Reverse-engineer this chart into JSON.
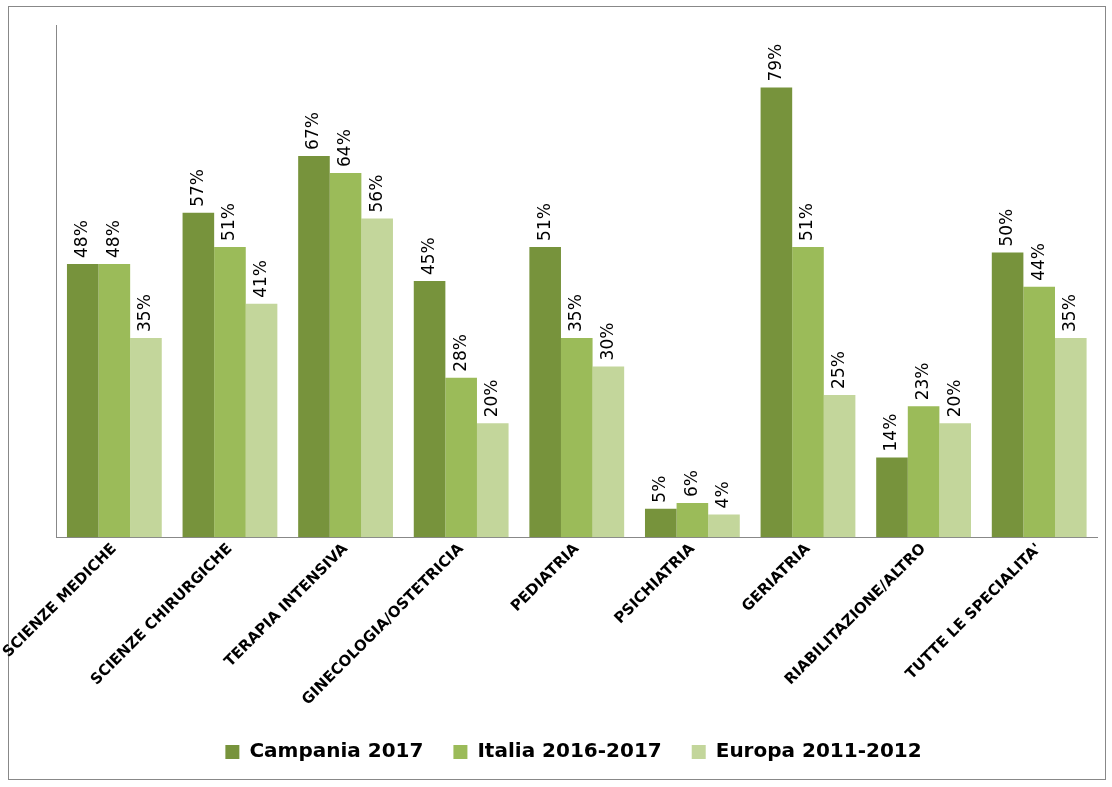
{
  "chart_data": {
    "type": "bar",
    "categories": [
      "SCIENZE MEDICHE",
      "SCIENZE CHIRURGICHE",
      "TERAPIA INTENSIVA",
      "GINECOLOGIA/OSTETRICIA",
      "PEDIATRIA",
      "PSICHIATRIA",
      "GERIATRIA",
      "RIABILITAZIONE/ALTRO",
      "TUTTE LE SPECIALITA'"
    ],
    "series": [
      {
        "name": "Campania 2017",
        "color": "#77933c",
        "values": [
          48,
          57,
          67,
          45,
          51,
          5,
          79,
          14,
          50
        ],
        "value_labels": [
          "48%",
          "57%",
          "67%",
          "45%",
          "51%",
          "5%",
          "79%",
          "14%",
          "50%"
        ]
      },
      {
        "name": "Italia 2016-2017",
        "color": "#9bbb59",
        "values": [
          48,
          51,
          64,
          28,
          35,
          6,
          51,
          23,
          44
        ],
        "value_labels": [
          "48%",
          "51%",
          "64%",
          "28%",
          "35%",
          "6%",
          "51%",
          "23%",
          "44%"
        ]
      },
      {
        "name": "Europa 2011-2012",
        "color": "#c3d69b",
        "values": [
          35,
          41,
          56,
          20,
          30,
          4,
          25,
          20,
          35
        ],
        "value_labels": [
          "35%",
          "41%",
          "56%",
          "20%",
          "30%",
          "4%",
          "25%",
          "20%",
          "35%"
        ]
      }
    ],
    "grid": false,
    "legend": "bottom"
  }
}
